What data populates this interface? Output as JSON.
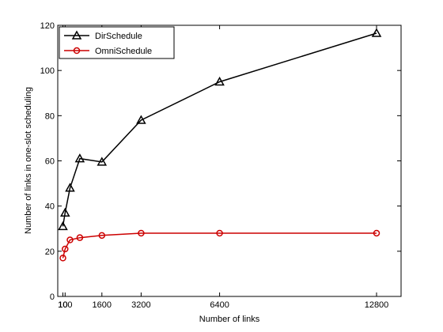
{
  "chart_data": {
    "type": "line",
    "xlabel": "Number of links",
    "ylabel": "Number of links in one-slot scheduling",
    "xlim": [
      -200,
      13800
    ],
    "ylim": [
      0,
      120
    ],
    "xticks": [
      10,
      100,
      1600,
      3200,
      6400,
      12800
    ],
    "xtick_labels": [
      "10",
      "100",
      "1600",
      "3200",
      "6400",
      "12800"
    ],
    "yticks": [
      0,
      20,
      40,
      60,
      80,
      100,
      120
    ],
    "grid": false,
    "legend": "top-left",
    "series": [
      {
        "name": "DirSchedule",
        "color": "#000000",
        "marker": "triangle",
        "x": [
          10,
          100,
          300,
          700,
          1600,
          3200,
          6400,
          12800
        ],
        "y": [
          31,
          37,
          48,
          61,
          59.5,
          78,
          95,
          116.5
        ]
      },
      {
        "name": "OmniSchedule",
        "color": "#cc0000",
        "marker": "circle",
        "x": [
          10,
          100,
          300,
          700,
          1600,
          3200,
          6400,
          12800
        ],
        "y": [
          17,
          21,
          25,
          26,
          27,
          28,
          28,
          28
        ]
      }
    ]
  }
}
